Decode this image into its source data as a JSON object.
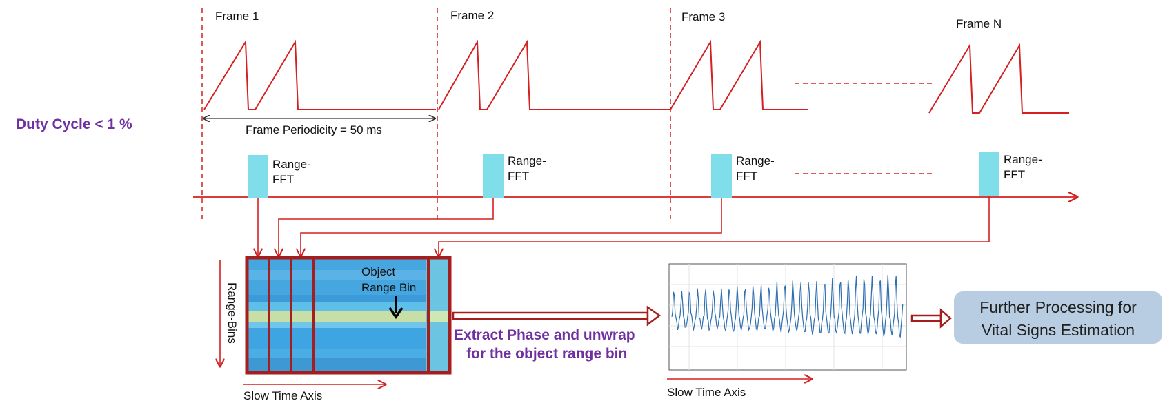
{
  "frames": [
    {
      "label": "Frame 1"
    },
    {
      "label": "Frame 2"
    },
    {
      "label": "Frame 3"
    },
    {
      "label": "Frame N"
    }
  ],
  "duty_cycle": "Duty Cycle < 1 %",
  "frame_periodicity": "Frame Periodicity = 50 ms",
  "range_fft": {
    "line1": "Range-",
    "line2": "FFT"
  },
  "range_bins_label": "Range-Bins",
  "object_range_bin": {
    "line1": "Object",
    "line2": "Range Bin"
  },
  "slow_time_axis": "Slow Time Axis",
  "extract_phase": {
    "line1": "Extract Phase and unwrap",
    "line2": "for the object range bin"
  },
  "further_processing": {
    "line1": "Further Processing for",
    "line2": "Vital Signs Estimation"
  },
  "colors": {
    "chirp_red": "#d42020",
    "dark_red": "#a51e1e",
    "purple": "#7030a0",
    "fft_cyan": "#80deea",
    "matrix_blue": "#45a6e0",
    "matrix_band": "#c7dfa6",
    "phase_line": "#2e6fb0",
    "further_box": "#b8cde2"
  }
}
